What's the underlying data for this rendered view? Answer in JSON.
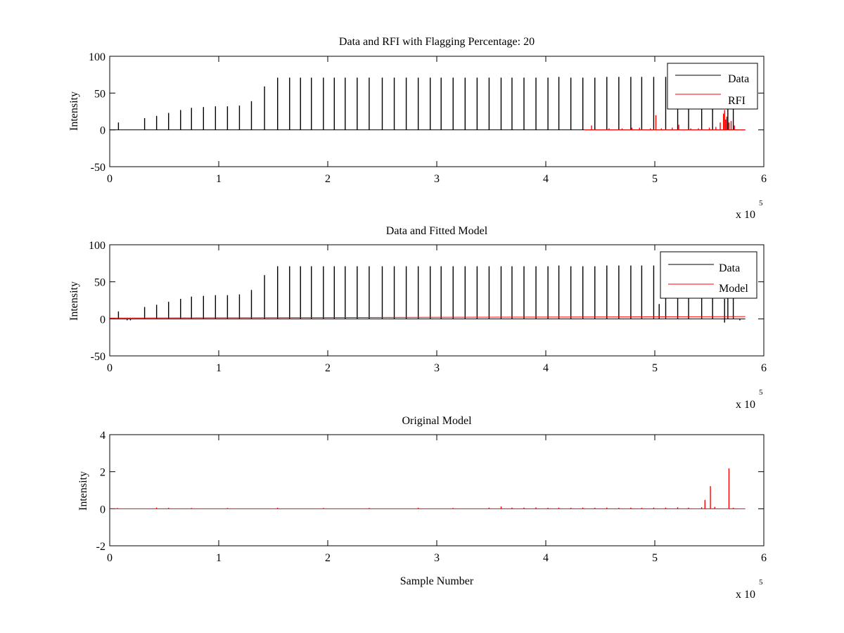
{
  "chart_data": [
    {
      "type": "line",
      "title": "Data and RFI with Flagging Percentage: 20",
      "xlabel": "",
      "ylabel": "Intensity",
      "x_multiplier_label": "x 10",
      "x_multiplier_exponent": "5",
      "xlim": [
        0,
        6
      ],
      "ylim": [
        -50,
        100
      ],
      "xticks": [
        0,
        1,
        2,
        3,
        4,
        5,
        6
      ],
      "yticks": [
        -50,
        0,
        50,
        100
      ],
      "legend_position": "top-right",
      "series": [
        {
          "name": "Data",
          "color": "#000000",
          "baseline": 0,
          "x_end": 5.83,
          "spikes": [
            [
              0.08,
              10
            ],
            [
              0.32,
              16
            ],
            [
              0.43,
              19
            ],
            [
              0.54,
              23
            ],
            [
              0.65,
              27
            ],
            [
              0.75,
              30
            ],
            [
              0.86,
              31
            ],
            [
              0.97,
              32
            ],
            [
              1.08,
              32
            ],
            [
              1.19,
              33
            ],
            [
              1.3,
              39
            ],
            [
              1.42,
              59
            ],
            [
              1.54,
              71
            ],
            [
              1.65,
              71
            ],
            [
              1.75,
              71
            ],
            [
              1.85,
              71
            ],
            [
              1.96,
              71
            ],
            [
              2.06,
              71
            ],
            [
              2.16,
              71
            ],
            [
              2.27,
              71
            ],
            [
              2.38,
              71
            ],
            [
              2.5,
              71
            ],
            [
              2.61,
              71
            ],
            [
              2.72,
              71
            ],
            [
              2.83,
              71
            ],
            [
              2.94,
              71
            ],
            [
              3.04,
              71
            ],
            [
              3.15,
              71
            ],
            [
              3.26,
              71
            ],
            [
              3.37,
              71
            ],
            [
              3.48,
              71
            ],
            [
              3.59,
              71
            ],
            [
              3.69,
              71
            ],
            [
              3.8,
              71
            ],
            [
              3.91,
              71
            ],
            [
              4.02,
              71
            ],
            [
              4.12,
              72
            ],
            [
              4.23,
              71
            ],
            [
              4.34,
              71
            ],
            [
              4.45,
              71
            ],
            [
              4.56,
              72
            ],
            [
              4.67,
              72
            ],
            [
              4.78,
              72
            ],
            [
              4.88,
              72
            ],
            [
              4.99,
              72
            ],
            [
              5.1,
              72
            ],
            [
              5.21,
              72
            ],
            [
              5.31,
              72
            ],
            [
              5.43,
              72
            ],
            [
              5.53,
              72
            ],
            [
              5.67,
              72
            ],
            [
              5.72,
              72
            ]
          ]
        },
        {
          "name": "RFI",
          "color": "#ff0000",
          "baseline": 0,
          "x_start": 4.35,
          "x_end": 5.83,
          "spikes": [
            [
              4.42,
              6
            ],
            [
              4.58,
              2
            ],
            [
              4.7,
              2
            ],
            [
              4.79,
              3
            ],
            [
              4.86,
              3
            ],
            [
              4.96,
              2
            ],
            [
              5.01,
              20
            ],
            [
              5.06,
              2
            ],
            [
              5.16,
              3
            ],
            [
              5.22,
              7
            ],
            [
              5.33,
              2
            ],
            [
              5.4,
              2
            ],
            [
              5.5,
              3
            ],
            [
              5.56,
              4
            ],
            [
              5.6,
              10
            ],
            [
              5.63,
              22
            ],
            [
              5.64,
              27
            ],
            [
              5.65,
              14
            ],
            [
              5.66,
              18
            ],
            [
              5.68,
              10
            ],
            [
              5.7,
              12
            ],
            [
              5.73,
              6
            ]
          ]
        }
      ]
    },
    {
      "type": "line",
      "title": "Data and Fitted Model",
      "xlabel": "",
      "ylabel": "Intensity",
      "x_multiplier_label": "x 10",
      "x_multiplier_exponent": "5",
      "xlim": [
        0,
        6
      ],
      "ylim": [
        -50,
        100
      ],
      "xticks": [
        0,
        1,
        2,
        3,
        4,
        5,
        6
      ],
      "yticks": [
        -50,
        0,
        50,
        100
      ],
      "legend_position": "top-right",
      "series": [
        {
          "name": "Data",
          "color": "#000000",
          "baseline": 0,
          "x_end": 5.83,
          "spikes": [
            [
              0.08,
              10
            ],
            [
              0.32,
              16
            ],
            [
              0.43,
              19
            ],
            [
              0.54,
              23
            ],
            [
              0.65,
              27
            ],
            [
              0.75,
              30
            ],
            [
              0.86,
              31
            ],
            [
              0.97,
              32
            ],
            [
              1.08,
              32
            ],
            [
              1.19,
              33
            ],
            [
              1.3,
              39
            ],
            [
              1.42,
              59
            ],
            [
              1.54,
              71
            ],
            [
              1.65,
              71
            ],
            [
              1.75,
              71
            ],
            [
              1.85,
              71
            ],
            [
              1.96,
              71
            ],
            [
              2.06,
              71
            ],
            [
              2.16,
              71
            ],
            [
              2.27,
              71
            ],
            [
              2.38,
              71
            ],
            [
              2.5,
              71
            ],
            [
              2.61,
              71
            ],
            [
              2.72,
              71
            ],
            [
              2.83,
              71
            ],
            [
              2.94,
              71
            ],
            [
              3.04,
              71
            ],
            [
              3.15,
              71
            ],
            [
              3.26,
              71
            ],
            [
              3.37,
              71
            ],
            [
              3.48,
              71
            ],
            [
              3.59,
              71
            ],
            [
              3.69,
              71
            ],
            [
              3.8,
              71
            ],
            [
              3.91,
              71
            ],
            [
              4.02,
              71
            ],
            [
              4.12,
              72
            ],
            [
              4.23,
              71
            ],
            [
              4.34,
              71
            ],
            [
              4.45,
              71
            ],
            [
              4.56,
              72
            ],
            [
              4.67,
              72
            ],
            [
              4.78,
              72
            ],
            [
              4.88,
              72
            ],
            [
              4.99,
              72
            ],
            [
              5.04,
              20
            ],
            [
              5.1,
              72
            ],
            [
              5.21,
              72
            ],
            [
              5.31,
              72
            ],
            [
              5.43,
              72
            ],
            [
              5.53,
              72
            ],
            [
              5.64,
              27
            ],
            [
              5.67,
              72
            ],
            [
              5.72,
              72
            ]
          ],
          "dips": [
            [
              0.16,
              -2
            ],
            [
              0.19,
              -2
            ],
            [
              5.64,
              -5
            ],
            [
              5.78,
              -2
            ]
          ]
        },
        {
          "name": "Model",
          "color": "#ff0000",
          "x": [
            0,
            5.83
          ],
          "y": [
            1,
            3
          ]
        }
      ]
    },
    {
      "type": "line",
      "title": "Original Model",
      "xlabel": "Sample Number",
      "ylabel": "Intensity",
      "x_multiplier_label": "x 10",
      "x_multiplier_exponent": "5",
      "xlim": [
        0,
        6
      ],
      "ylim": [
        -2,
        4
      ],
      "xticks": [
        0,
        1,
        2,
        3,
        4,
        5,
        6
      ],
      "yticks": [
        -2,
        0,
        2,
        4
      ],
      "series": [
        {
          "color": "#ff0000",
          "baseline": 0,
          "x_end": 5.83,
          "spikes": [
            [
              0.07,
              0.04
            ],
            [
              0.43,
              0.06
            ],
            [
              0.54,
              0.05
            ],
            [
              0.75,
              0.04
            ],
            [
              1.08,
              0.04
            ],
            [
              1.54,
              0.05
            ],
            [
              1.96,
              0.04
            ],
            [
              2.38,
              0.04
            ],
            [
              2.83,
              0.05
            ],
            [
              3.15,
              0.04
            ],
            [
              3.48,
              0.06
            ],
            [
              3.59,
              0.12
            ],
            [
              3.69,
              0.06
            ],
            [
              3.8,
              0.06
            ],
            [
              3.91,
              0.07
            ],
            [
              4.02,
              0.05
            ],
            [
              4.12,
              0.06
            ],
            [
              4.23,
              0.05
            ],
            [
              4.34,
              0.06
            ],
            [
              4.45,
              0.05
            ],
            [
              4.56,
              0.06
            ],
            [
              4.67,
              0.05
            ],
            [
              4.78,
              0.06
            ],
            [
              4.88,
              0.05
            ],
            [
              4.99,
              0.06
            ],
            [
              5.1,
              0.06
            ],
            [
              5.21,
              0.08
            ],
            [
              5.31,
              0.06
            ],
            [
              5.43,
              0.08
            ],
            [
              5.46,
              0.48
            ],
            [
              5.51,
              1.22
            ],
            [
              5.55,
              0.1
            ],
            [
              5.68,
              2.18
            ],
            [
              5.72,
              0.05
            ]
          ]
        }
      ]
    }
  ]
}
